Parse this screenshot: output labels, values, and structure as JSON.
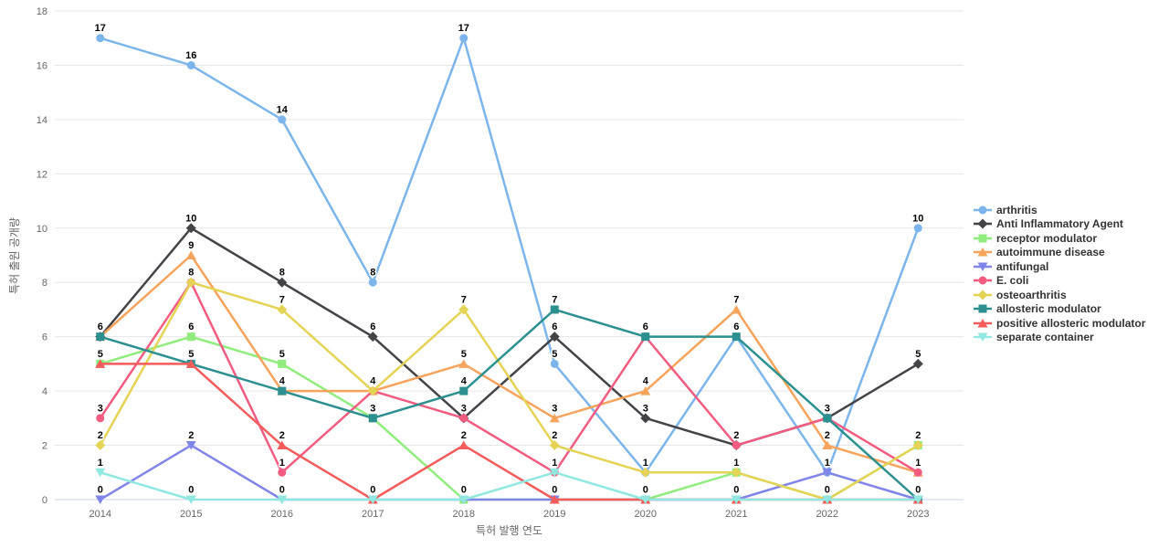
{
  "chart_data": {
    "type": "line",
    "title": "",
    "xlabel": "특허 발행 연도",
    "ylabel": "특허 출원 공개량",
    "categories": [
      "2014",
      "2015",
      "2016",
      "2017",
      "2018",
      "2019",
      "2020",
      "2021",
      "2022",
      "2023"
    ],
    "ylim": [
      0,
      18
    ],
    "yticks": [
      0,
      2,
      4,
      6,
      8,
      10,
      12,
      14,
      16,
      18
    ],
    "grid": true,
    "legend_position": "right",
    "data_labels": true,
    "series": [
      {
        "name": "arthritis",
        "color": "#7cb5ec",
        "symbol": "circle",
        "values": [
          17,
          16,
          14,
          8,
          17,
          5,
          1,
          6,
          1,
          10
        ]
      },
      {
        "name": "Anti Inflammatory Agent",
        "color": "#434348",
        "symbol": "diamond",
        "values": [
          6,
          10,
          8,
          6,
          3,
          6,
          3,
          2,
          3,
          5
        ]
      },
      {
        "name": "receptor modulator",
        "color": "#90ed7d",
        "symbol": "square",
        "values": [
          5,
          6,
          5,
          3,
          0,
          0,
          0,
          1,
          0,
          2
        ]
      },
      {
        "name": "autoimmune disease",
        "color": "#f7a35c",
        "symbol": "triangle",
        "values": [
          6,
          9,
          4,
          4,
          5,
          3,
          4,
          7,
          2,
          1
        ]
      },
      {
        "name": "antifungal",
        "color": "#8085e9",
        "symbol": "triangle-down",
        "values": [
          0,
          2,
          0,
          0,
          0,
          0,
          0,
          0,
          1,
          0
        ]
      },
      {
        "name": "E. coli",
        "color": "#f15c80",
        "symbol": "circle",
        "values": [
          3,
          8,
          1,
          4,
          3,
          1,
          6,
          2,
          3,
          1
        ]
      },
      {
        "name": "osteoarthritis",
        "color": "#e4d354",
        "symbol": "diamond",
        "values": [
          2,
          8,
          7,
          4,
          7,
          2,
          1,
          1,
          0,
          2
        ]
      },
      {
        "name": "allosteric modulator",
        "color": "#2b908f",
        "symbol": "square",
        "values": [
          6,
          5,
          4,
          3,
          4,
          7,
          6,
          6,
          3,
          0
        ]
      },
      {
        "name": "positive allosteric modulator",
        "color": "#f45b5b",
        "symbol": "triangle",
        "values": [
          5,
          5,
          2,
          0,
          2,
          0,
          0,
          0,
          0,
          0
        ]
      },
      {
        "name": "separate container",
        "color": "#91e8e1",
        "symbol": "triangle-down",
        "values": [
          1,
          0,
          0,
          0,
          0,
          1,
          0,
          0,
          0,
          0
        ]
      }
    ],
    "style": {
      "background": "#ffffff",
      "grid_color": "#e6e6e6",
      "axis_line_color": "#ccd6eb",
      "tick_label_color": "#666666",
      "axis_title_color": "#666666",
      "data_label_color": "#000000",
      "legend_text_color": "#333333"
    }
  }
}
